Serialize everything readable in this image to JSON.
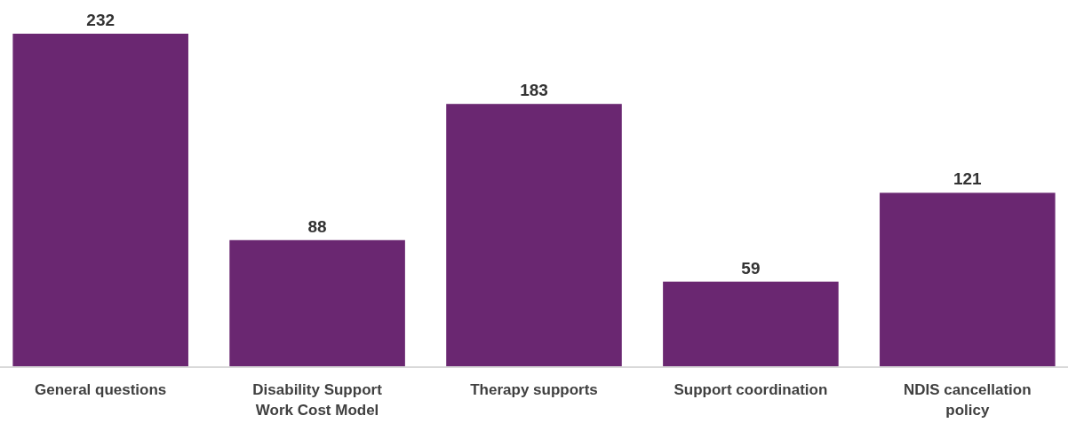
{
  "chart_data": {
    "type": "bar",
    "categories": [
      "General questions",
      "Disability Support Work Cost Model",
      "Therapy supports",
      "Support coordination",
      "NDIS cancellation policy"
    ],
    "values": [
      232,
      88,
      183,
      59,
      121
    ],
    "color": "#6a2771",
    "data_labels": true
  }
}
